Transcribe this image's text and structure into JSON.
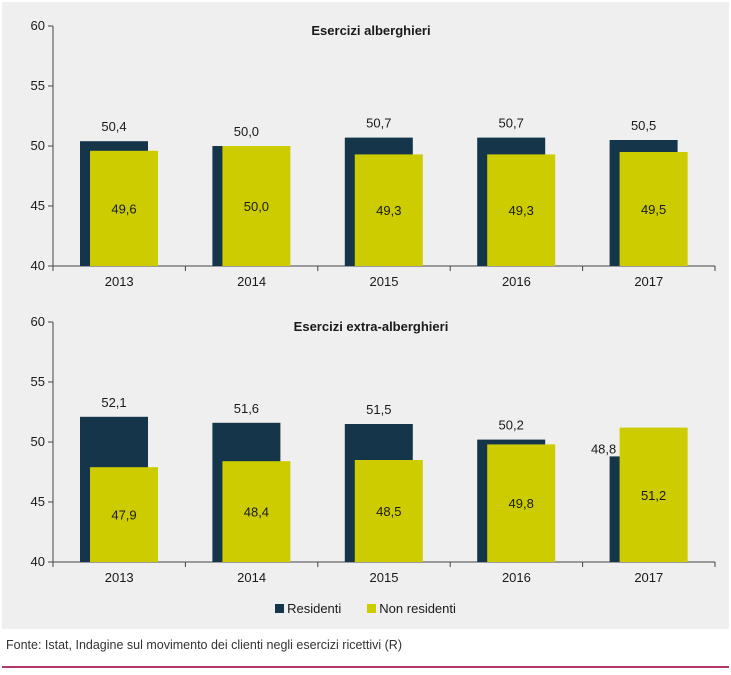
{
  "colors": {
    "residenti": "#15364a",
    "non_residenti": "#cccc00",
    "axis": "#444444",
    "rule": "#b0386b"
  },
  "chart_data": [
    {
      "type": "bar",
      "title": "Esercizi alberghieri",
      "categories": [
        "2013",
        "2014",
        "2015",
        "2016",
        "2017"
      ],
      "ylim": [
        40,
        60
      ],
      "yticks": [
        40,
        45,
        50,
        55,
        60
      ],
      "grid": false,
      "series": [
        {
          "name": "Residenti",
          "values": [
            50.4,
            50.0,
            50.7,
            50.7,
            50.5
          ],
          "labels": [
            "50,4",
            "50,0",
            "50,7",
            "50,7",
            "50,5"
          ]
        },
        {
          "name": "Non residenti",
          "values": [
            49.6,
            50.0,
            49.3,
            49.3,
            49.5
          ],
          "labels": [
            "49,6",
            "50,0",
            "49,3",
            "49,3",
            "49,5"
          ]
        }
      ]
    },
    {
      "type": "bar",
      "title": "Esercizi extra-alberghieri",
      "categories": [
        "2013",
        "2014",
        "2015",
        "2016",
        "2017"
      ],
      "ylim": [
        40,
        60
      ],
      "yticks": [
        40,
        45,
        50,
        55,
        60
      ],
      "grid": false,
      "series": [
        {
          "name": "Residenti",
          "values": [
            52.1,
            51.6,
            51.5,
            50.2,
            48.8
          ],
          "labels": [
            "52,1",
            "51,6",
            "51,5",
            "50,2",
            "48,8"
          ]
        },
        {
          "name": "Non residenti",
          "values": [
            47.9,
            48.4,
            48.5,
            49.8,
            51.2
          ],
          "labels": [
            "47,9",
            "48,4",
            "48,5",
            "49,8",
            "51,2"
          ]
        }
      ]
    }
  ],
  "legend": {
    "position": "bottom",
    "items": [
      "Residenti",
      "Non residenti"
    ]
  },
  "source": "Fonte: Istat, Indagine sul movimento dei clienti negli esercizi ricettivi (R)"
}
